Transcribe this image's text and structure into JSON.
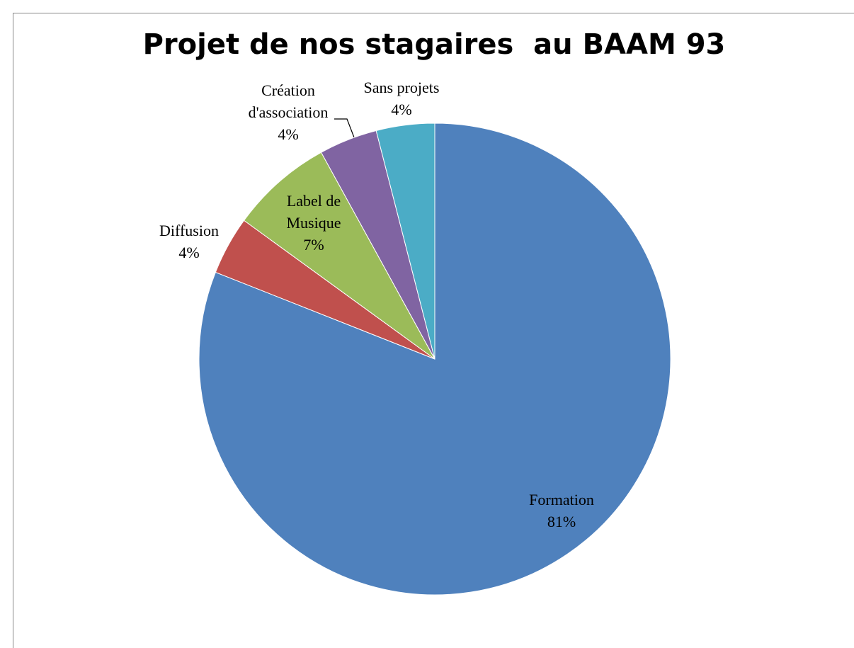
{
  "chart_data": {
    "type": "pie",
    "title": "Projet de nos stagaires  au BAAM 93",
    "categories": [
      "Formation",
      "Diffusion",
      "Label de Musique",
      "Création d'association",
      "Sans projets"
    ],
    "values": [
      81,
      4,
      7,
      4,
      4
    ],
    "value_labels": [
      "81%",
      "4%",
      "7%",
      "4%",
      "4%"
    ],
    "colors": [
      "#4f81bd",
      "#c0504d",
      "#9bbb59",
      "#8064a2",
      "#4bacc6"
    ]
  }
}
